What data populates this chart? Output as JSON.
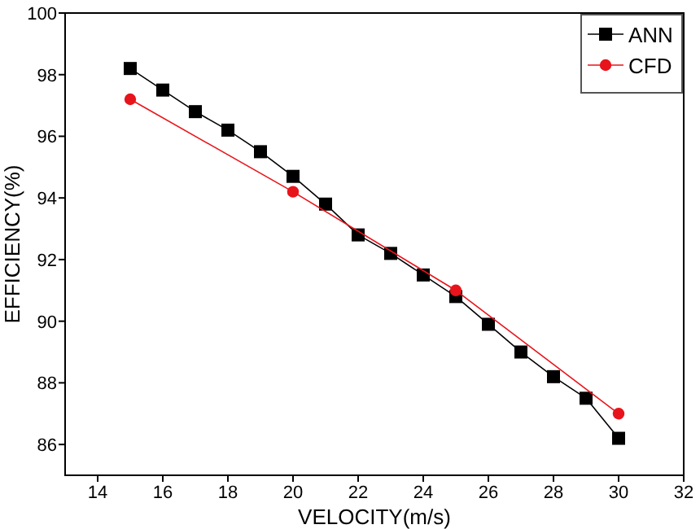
{
  "chart_data": {
    "type": "line",
    "xlabel": "VELOCITY(m/s)",
    "ylabel": "EFFICIENCY(%)",
    "xlim": [
      13,
      32
    ],
    "xticks": [
      14,
      16,
      18,
      20,
      22,
      24,
      26,
      28,
      30,
      32
    ],
    "ylim": [
      85,
      100
    ],
    "yticks": [
      86,
      88,
      90,
      92,
      94,
      96,
      98,
      100
    ],
    "grid": false,
    "legend": "top right",
    "line_style": "solid",
    "series": [
      {
        "name": "ANN",
        "color": "#000000",
        "marker": "square",
        "x": [
          15,
          16,
          17,
          18,
          19,
          20,
          21,
          22,
          23,
          24,
          25,
          26,
          27,
          28,
          29,
          30
        ],
        "values": [
          98.2,
          97.5,
          96.8,
          96.2,
          95.5,
          94.7,
          93.8,
          92.8,
          92.2,
          91.5,
          90.8,
          89.9,
          89.0,
          88.2,
          87.5,
          86.2
        ]
      },
      {
        "name": "CFD",
        "color": "#e8141b",
        "marker": "circle",
        "x": [
          15,
          20,
          25,
          30
        ],
        "values": [
          97.2,
          94.2,
          91.0,
          87.0
        ]
      }
    ]
  }
}
